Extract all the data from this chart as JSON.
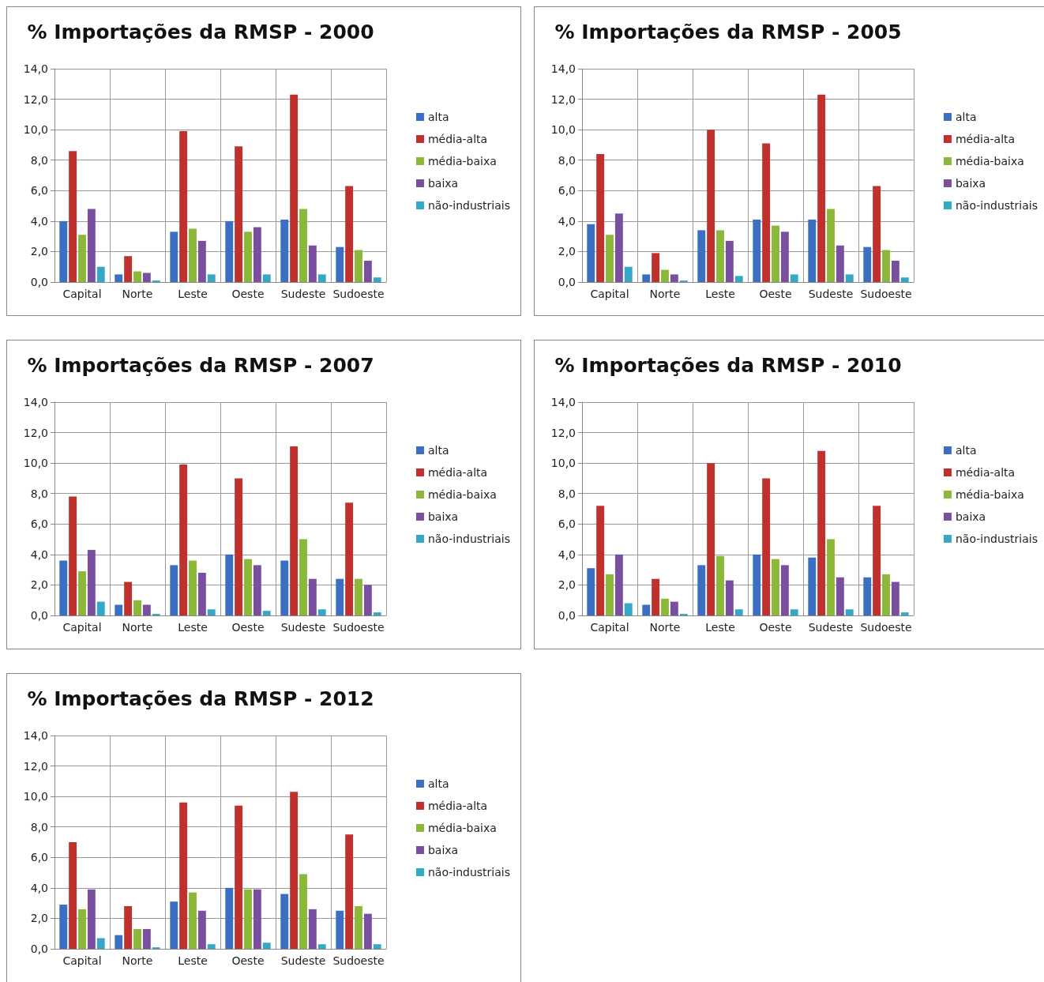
{
  "chart_data": [
    {
      "type": "bar",
      "title": "% Importações da RMSP - 2000",
      "categories": [
        "Capital",
        "Norte",
        "Leste",
        "Oeste",
        "Sudeste",
        "Sudoeste"
      ],
      "series": [
        {
          "name": "alta",
          "color": "#3a6fc4",
          "values": [
            4.0,
            0.5,
            3.3,
            4.0,
            4.1,
            2.3
          ]
        },
        {
          "name": "média-alta",
          "color": "#c0302c",
          "values": [
            8.6,
            1.7,
            9.9,
            8.9,
            12.3,
            6.3
          ]
        },
        {
          "name": "média-baixa",
          "color": "#8cb83a",
          "values": [
            3.1,
            0.7,
            3.5,
            3.3,
            4.8,
            2.1
          ]
        },
        {
          "name": "baixa",
          "color": "#7a4fa0",
          "values": [
            4.8,
            0.6,
            2.7,
            3.6,
            2.4,
            1.4
          ]
        },
        {
          "name": "não-industriais",
          "color": "#35a8c8",
          "values": [
            1.0,
            0.1,
            0.5,
            0.5,
            0.5,
            0.3
          ]
        }
      ],
      "ylim": [
        0,
        14
      ],
      "yticks": [
        {
          "value": 0,
          "label": "0,0"
        },
        {
          "value": 2,
          "label": "2,0"
        },
        {
          "value": 4,
          "label": "4,0"
        },
        {
          "value": 6,
          "label": "6,0"
        },
        {
          "value": 8,
          "label": "8,0"
        },
        {
          "value": 10,
          "label": "10,0"
        },
        {
          "value": 12,
          "label": "12,0"
        },
        {
          "value": 14,
          "label": "14,0"
        }
      ],
      "grid": true,
      "legend": "right"
    },
    {
      "type": "bar",
      "title": "% Importações da RMSP - 2005",
      "categories": [
        "Capital",
        "Norte",
        "Leste",
        "Oeste",
        "Sudeste",
        "Sudoeste"
      ],
      "series": [
        {
          "name": "alta",
          "color": "#3a6fc4",
          "values": [
            3.8,
            0.5,
            3.4,
            4.1,
            4.1,
            2.3
          ]
        },
        {
          "name": "média-alta",
          "color": "#c0302c",
          "values": [
            8.4,
            1.9,
            10.0,
            9.1,
            12.3,
            6.3
          ]
        },
        {
          "name": "média-baixa",
          "color": "#8cb83a",
          "values": [
            3.1,
            0.8,
            3.4,
            3.7,
            4.8,
            2.1
          ]
        },
        {
          "name": "baixa",
          "color": "#7a4fa0",
          "values": [
            4.5,
            0.5,
            2.7,
            3.3,
            2.4,
            1.4
          ]
        },
        {
          "name": "não-industriais",
          "color": "#35a8c8",
          "values": [
            1.0,
            0.1,
            0.4,
            0.5,
            0.5,
            0.3
          ]
        }
      ],
      "ylim": [
        0,
        14
      ],
      "yticks": [
        {
          "value": 0,
          "label": "0,0"
        },
        {
          "value": 2,
          "label": "2,0"
        },
        {
          "value": 4,
          "label": "4,0"
        },
        {
          "value": 6,
          "label": "6,0"
        },
        {
          "value": 8,
          "label": "8,0"
        },
        {
          "value": 10,
          "label": "10,0"
        },
        {
          "value": 12,
          "label": "12,0"
        },
        {
          "value": 14,
          "label": "14,0"
        }
      ],
      "grid": true,
      "legend": "right"
    },
    {
      "type": "bar",
      "title": "% Importações da RMSP - 2007",
      "categories": [
        "Capital",
        "Norte",
        "Leste",
        "Oeste",
        "Sudeste",
        "Sudoeste"
      ],
      "series": [
        {
          "name": "alta",
          "color": "#3a6fc4",
          "values": [
            3.6,
            0.7,
            3.3,
            4.0,
            3.6,
            2.4
          ]
        },
        {
          "name": "média-alta",
          "color": "#c0302c",
          "values": [
            7.8,
            2.2,
            9.9,
            9.0,
            11.1,
            7.4
          ]
        },
        {
          "name": "média-baixa",
          "color": "#8cb83a",
          "values": [
            2.9,
            1.0,
            3.6,
            3.7,
            5.0,
            2.4
          ]
        },
        {
          "name": "baixa",
          "color": "#7a4fa0",
          "values": [
            4.3,
            0.7,
            2.8,
            3.3,
            2.4,
            2.0
          ]
        },
        {
          "name": "não-industriais",
          "color": "#35a8c8",
          "values": [
            0.9,
            0.1,
            0.4,
            0.3,
            0.4,
            0.2
          ]
        }
      ],
      "ylim": [
        0,
        14
      ],
      "yticks": [
        {
          "value": 0,
          "label": "0,0"
        },
        {
          "value": 2,
          "label": "2,0"
        },
        {
          "value": 4,
          "label": "4,0"
        },
        {
          "value": 6,
          "label": "6,0"
        },
        {
          "value": 8,
          "label": "8,0"
        },
        {
          "value": 10,
          "label": "10,0"
        },
        {
          "value": 12,
          "label": "12,0"
        },
        {
          "value": 14,
          "label": "14,0"
        }
      ],
      "grid": true,
      "legend": "right"
    },
    {
      "type": "bar",
      "title": "% Importações da RMSP - 2010",
      "categories": [
        "Capital",
        "Norte",
        "Leste",
        "Oeste",
        "Sudeste",
        "Sudoeste"
      ],
      "series": [
        {
          "name": "alta",
          "color": "#3a6fc4",
          "values": [
            3.1,
            0.7,
            3.3,
            4.0,
            3.8,
            2.5
          ]
        },
        {
          "name": "média-alta",
          "color": "#c0302c",
          "values": [
            7.2,
            2.4,
            10.0,
            9.0,
            10.8,
            7.2
          ]
        },
        {
          "name": "média-baixa",
          "color": "#8cb83a",
          "values": [
            2.7,
            1.1,
            3.9,
            3.7,
            5.0,
            2.7
          ]
        },
        {
          "name": "baixa",
          "color": "#7a4fa0",
          "values": [
            4.0,
            0.9,
            2.3,
            3.3,
            2.5,
            2.2
          ]
        },
        {
          "name": "não-industriais",
          "color": "#35a8c8",
          "values": [
            0.8,
            0.1,
            0.4,
            0.4,
            0.4,
            0.2
          ]
        }
      ],
      "ylim": [
        0,
        14
      ],
      "yticks": [
        {
          "value": 0,
          "label": "0,0"
        },
        {
          "value": 2,
          "label": "2,0"
        },
        {
          "value": 4,
          "label": "4,0"
        },
        {
          "value": 6,
          "label": "6,0"
        },
        {
          "value": 8,
          "label": "8,0"
        },
        {
          "value": 10,
          "label": "10,0"
        },
        {
          "value": 12,
          "label": "12,0"
        },
        {
          "value": 14,
          "label": "14,0"
        }
      ],
      "grid": true,
      "legend": "right"
    },
    {
      "type": "bar",
      "title": "% Importações da RMSP - 2012",
      "categories": [
        "Capital",
        "Norte",
        "Leste",
        "Oeste",
        "Sudeste",
        "Sudoeste"
      ],
      "series": [
        {
          "name": "alta",
          "color": "#3a6fc4",
          "values": [
            2.9,
            0.9,
            3.1,
            4.0,
            3.6,
            2.5
          ]
        },
        {
          "name": "média-alta",
          "color": "#c0302c",
          "values": [
            7.0,
            2.8,
            9.6,
            9.4,
            10.3,
            7.5
          ]
        },
        {
          "name": "média-baixa",
          "color": "#8cb83a",
          "values": [
            2.6,
            1.3,
            3.7,
            3.9,
            4.9,
            2.8
          ]
        },
        {
          "name": "baixa",
          "color": "#7a4fa0",
          "values": [
            3.9,
            1.3,
            2.5,
            3.9,
            2.6,
            2.3
          ]
        },
        {
          "name": "não-industriais",
          "color": "#35a8c8",
          "values": [
            0.7,
            0.1,
            0.3,
            0.4,
            0.3,
            0.3
          ]
        }
      ],
      "ylim": [
        0,
        14
      ],
      "yticks": [
        {
          "value": 0,
          "label": "0,0"
        },
        {
          "value": 2,
          "label": "2,0"
        },
        {
          "value": 4,
          "label": "4,0"
        },
        {
          "value": 6,
          "label": "6,0"
        },
        {
          "value": 8,
          "label": "8,0"
        },
        {
          "value": 10,
          "label": "10,0"
        },
        {
          "value": 12,
          "label": "12,0"
        },
        {
          "value": 14,
          "label": "14,0"
        }
      ],
      "grid": true,
      "legend": "right"
    }
  ]
}
